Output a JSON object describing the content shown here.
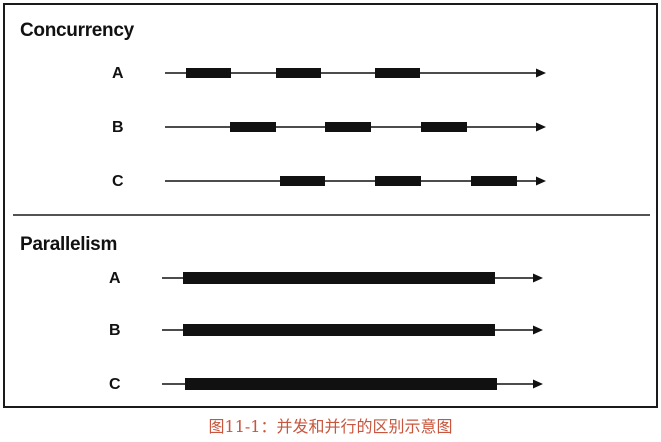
{
  "diagram": {
    "sections": [
      {
        "id": "concurrency",
        "title": "Concurrency",
        "rows": [
          {
            "label": "A",
            "blocks": [
              [
                183,
                228
              ],
              [
                273,
                318
              ],
              [
                372,
                417
              ]
            ]
          },
          {
            "label": "B",
            "blocks": [
              [
                227,
                273
              ],
              [
                322,
                368
              ],
              [
                418,
                464
              ]
            ]
          },
          {
            "label": "C",
            "blocks": [
              [
                277,
                322
              ],
              [
                372,
                418
              ],
              [
                468,
                514
              ]
            ]
          }
        ]
      },
      {
        "id": "parallelism",
        "title": "Parallelism",
        "rows": [
          {
            "label": "A",
            "blocks": [
              [
                180,
                492
              ]
            ]
          },
          {
            "label": "B",
            "blocks": [
              [
                180,
                492
              ]
            ]
          },
          {
            "label": "C",
            "blocks": [
              [
                182,
                494
              ]
            ]
          }
        ]
      }
    ]
  },
  "caption": "图11-1：并发和并行的区别示意图",
  "colors": {
    "ink": "#111111",
    "caption": "#c8553d",
    "background": "#ffffff"
  }
}
